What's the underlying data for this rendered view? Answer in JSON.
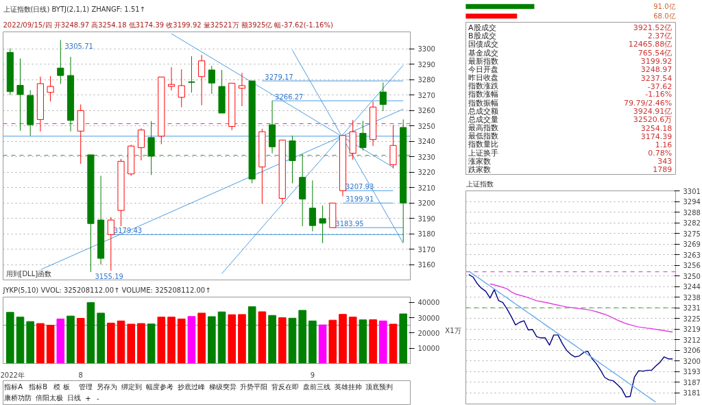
{
  "chart_data": [
    {
      "type": "candlestick",
      "title": "上证指数(日线)",
      "subtitle": "2022/09/15/四 开3248.97 高3254.18 低3174.39 收3199.92 量32521万 额3925亿 幅-37.62(-1.16%)",
      "annotations": [
        "BYTJ(2,1,1)  ZHANGF: 1.51↑",
        "用到[DLL]函数",
        "3305.71",
        "3155.19",
        {
          "text": "3179.43",
          "y": 3179.43
        },
        {
          "text": "3279.17",
          "y": 3279.17
        },
        {
          "text": "3266.27",
          "y": 3266.27
        },
        {
          "text": "3207.93",
          "y": 3207.93
        },
        {
          "text": "3199.91",
          "y": 3199.91
        },
        {
          "text": "3183.95",
          "y": 3183.95
        }
      ],
      "categories": [
        null,
        null,
        null,
        null,
        null,
        null,
        null,
        null,
        null,
        null,
        null,
        null,
        null,
        null,
        null,
        null,
        null,
        null,
        null,
        null,
        null,
        null,
        null,
        null,
        null,
        null,
        null,
        null,
        null,
        null,
        null,
        null,
        null,
        null,
        null,
        null,
        null,
        null,
        null,
        null
      ],
      "ohlc": [
        [
          3297.7,
          3300.3,
          3270.0,
          3272.2
        ],
        [
          3276.3,
          3293.7,
          3246.8,
          3270.3
        ],
        [
          3269.8,
          3273.1,
          3243.6,
          3250.7
        ],
        [
          3254.1,
          3282.0,
          3246.3,
          3277.4
        ],
        [
          3271.7,
          3282.3,
          3265.8,
          3275.6
        ],
        [
          3287.5,
          3305.71,
          3277.2,
          3282.7
        ],
        [
          3282.7,
          3294.8,
          3246.4,
          3253.5
        ],
        [
          3246.6,
          3263.9,
          3225.4,
          3259.9
        ],
        [
          3231.2,
          3231.2,
          3155.19,
          3186.6
        ],
        [
          3188.9,
          3217.6,
          3159.9,
          3164.0
        ],
        [
          3179.43,
          3190.8,
          3156.0,
          3188.9
        ],
        [
          3195.1,
          3228.6,
          3184.9,
          3227.0
        ],
        [
          3218.8,
          3237.7,
          3217.6,
          3236.9
        ],
        [
          3235.9,
          3248.4,
          3227.6,
          3247.3
        ],
        [
          3242.4,
          3253.1,
          3218.1,
          3230.3
        ],
        [
          3243.3,
          3281.7,
          3238.1,
          3281.7
        ],
        [
          3275.6,
          3288.1,
          3272.9,
          3276.9
        ],
        [
          3268.5,
          3286.7,
          3262.1,
          3276.1
        ],
        [
          3278.6,
          3295.2,
          3271.6,
          3278.2
        ],
        [
          3282.0,
          3296.0,
          3263.4,
          3292.2
        ],
        [
          3286.3,
          3288.9,
          3270.7,
          3277.8
        ],
        [
          3275.6,
          3286.3,
          3258.3,
          3258.3
        ],
        [
          3249.6,
          3277.7,
          3247.2,
          3277.7
        ],
        [
          3274.4,
          3284.4,
          3262.8,
          3276.1
        ],
        [
          3279.17,
          3279.17,
          3212.7,
          3215.5
        ],
        [
          3223.3,
          3248.1,
          3199.4,
          3246.2
        ],
        [
          3250.7,
          3266.27,
          3232.2,
          3236.4
        ],
        [
          3202.9,
          3240.8,
          3199.4,
          3240.8
        ],
        [
          3240.3,
          3243.7,
          3212.7,
          3227.4
        ],
        [
          3216.6,
          3231.6,
          3184.9,
          3202.5
        ],
        [
          3196.6,
          3214.6,
          3181.6,
          3185.3
        ],
        [
          3189.8,
          3198.3,
          3173.9,
          3186.8
        ],
        [
          3183.95,
          3199.91,
          3183.95,
          3199.91
        ],
        [
          3207.93,
          3244.2,
          3204.2,
          3243.7
        ],
        [
          3232.2,
          3253.8,
          3228.0,
          3246.2
        ],
        [
          3245.2,
          3253.3,
          3233.9,
          3235.9
        ],
        [
          3241.1,
          3265.7,
          3236.9,
          3262.2
        ],
        [
          3272.0,
          3278.1,
          3259.6,
          3263.9
        ],
        [
          3224.8,
          3250.5,
          3222.4,
          3237.3
        ],
        [
          3248.97,
          3254.18,
          3174.39,
          3199.92
        ]
      ],
      "colors": [
        "#008000",
        "#008000",
        "#008000",
        "#ff0000",
        "#ff0000",
        "#008000",
        "#008000",
        "#ff0000",
        "#008000",
        "#008000",
        "#ff0000",
        "#ff0000",
        "#ff0000",
        "#ff0000",
        "#008000",
        "#ff0000",
        "#ff0000",
        "#ff0000",
        "#008000",
        "#ff0000",
        "#008000",
        "#008000",
        "#ff0000",
        "#ff0000",
        "#008000",
        "#ff0000",
        "#008000",
        "#ff0000",
        "#008000",
        "#008000",
        "#008000",
        "#008000",
        "#ff0000",
        "#ff0000",
        "#ff0000",
        "#008000",
        "#ff0000",
        "#008000",
        "#ff0000",
        "#008000"
      ],
      "series": [
        {
          "type": "line",
          "color": "#4a9be0",
          "values": [
            null,
            null,
            null,
            3156.6,
            null,
            null,
            null,
            null,
            null,
            null,
            null,
            null,
            null,
            null,
            null,
            null,
            null,
            null,
            null,
            null,
            null,
            null,
            null,
            null,
            null,
            null,
            null,
            null,
            null,
            null,
            null,
            null,
            null,
            null,
            null,
            null,
            null,
            null,
            null,
            3260.9
          ]
        },
        {
          "type": "line",
          "color": "#4a9be0",
          "values": [
            null,
            null,
            null,
            null,
            null,
            null,
            null,
            null,
            null,
            null,
            null,
            null,
            null,
            null,
            null,
            null,
            null,
            null,
            null,
            null,
            null,
            3154.1,
            null,
            null,
            null,
            null,
            null,
            null,
            null,
            null,
            null,
            null,
            null,
            null,
            null,
            null,
            null,
            null,
            null,
            3289.4
          ]
        },
        {
          "type": "line",
          "color": "#4a9be0",
          "values": [
            null,
            null,
            null,
            null,
            null,
            null,
            null,
            null,
            null,
            null,
            null,
            null,
            null,
            null,
            null,
            null,
            3309.8,
            null,
            null,
            null,
            null,
            null,
            null,
            null,
            null,
            null,
            null,
            null,
            null,
            null,
            null,
            null,
            null,
            null,
            null,
            null,
            null,
            null,
            3223.1,
            null
          ]
        },
        {
          "type": "line",
          "color": "#4a9be0",
          "values": [
            null,
            null,
            null,
            null,
            null,
            null,
            null,
            null,
            null,
            null,
            null,
            null,
            null,
            null,
            null,
            null,
            null,
            null,
            null,
            null,
            null,
            null,
            null,
            null,
            null,
            null,
            null,
            null,
            3299.1,
            null,
            null,
            null,
            null,
            null,
            null,
            null,
            null,
            null,
            null,
            3173.8
          ]
        },
        {
          "type": "line",
          "color": "#4a9be0",
          "values": [
            null,
            null,
            null,
            null,
            null,
            null,
            null,
            null,
            null,
            null,
            3179.43,
            null,
            null,
            null,
            null,
            null,
            null,
            null,
            null,
            null,
            null,
            null,
            null,
            null,
            null,
            null,
            null,
            null,
            null,
            null,
            null,
            null,
            null,
            null,
            null,
            null,
            null,
            null,
            null,
            3179.43
          ]
        },
        {
          "type": "line",
          "color": "#4a9be0",
          "values": [
            null,
            null,
            null,
            null,
            null,
            null,
            null,
            null,
            null,
            null,
            null,
            null,
            null,
            null,
            null,
            null,
            null,
            null,
            null,
            null,
            null,
            null,
            null,
            null,
            null,
            3279.17,
            null,
            null,
            null,
            null,
            null,
            null,
            null,
            null,
            null,
            null,
            null,
            null,
            null,
            3279.17
          ]
        },
        {
          "type": "line",
          "color": "#4a9be0",
          "values": [
            null,
            null,
            null,
            null,
            null,
            null,
            null,
            null,
            null,
            null,
            null,
            null,
            null,
            null,
            null,
            null,
            null,
            null,
            null,
            null,
            null,
            null,
            null,
            null,
            null,
            null,
            3266.27,
            null,
            null,
            null,
            null,
            null,
            null,
            null,
            null,
            null,
            null,
            null,
            null,
            3266.27
          ]
        },
        {
          "type": "line",
          "color": "#4a9be0",
          "values": [
            null,
            null,
            null,
            null,
            null,
            null,
            null,
            null,
            null,
            null,
            null,
            null,
            null,
            null,
            null,
            null,
            null,
            null,
            null,
            null,
            null,
            null,
            null,
            null,
            null,
            null,
            null,
            null,
            null,
            null,
            null,
            null,
            null,
            3207.93,
            null,
            null,
            null,
            null,
            3207.93,
            null
          ]
        },
        {
          "type": "line",
          "color": "#4a9be0",
          "values": [
            null,
            null,
            null,
            null,
            null,
            null,
            null,
            null,
            null,
            null,
            null,
            null,
            null,
            null,
            null,
            null,
            null,
            null,
            null,
            null,
            null,
            null,
            null,
            null,
            null,
            null,
            null,
            null,
            null,
            null,
            null,
            null,
            null,
            3199.91,
            null,
            null,
            null,
            null,
            3199.91,
            null
          ]
        },
        {
          "type": "line",
          "color": "#4a9be0",
          "values": [
            null,
            null,
            null,
            null,
            null,
            null,
            null,
            null,
            null,
            null,
            null,
            null,
            null,
            null,
            null,
            null,
            null,
            null,
            null,
            null,
            null,
            null,
            null,
            null,
            null,
            null,
            null,
            null,
            null,
            null,
            null,
            null,
            3183.95,
            null,
            null,
            null,
            null,
            null,
            null,
            3183.95
          ]
        }
      ],
      "ref_lines": [
        {
          "axis": "y",
          "value": 3243.3,
          "color": "#4a9be0",
          "line_style": "solid"
        },
        {
          "axis": "y",
          "value": 3251.4,
          "color": "#cc33cc",
          "line_style": "dashed"
        },
        {
          "axis": "y",
          "value": 3230.9,
          "color": "#339933",
          "line_style": "dashed"
        }
      ],
      "ylim": [
        3150,
        3311
      ],
      "yticks": [
        3160,
        3170,
        3180,
        3190,
        3200,
        3210,
        3220,
        3230,
        3240,
        3250,
        3260,
        3270,
        3280,
        3290,
        3300
      ],
      "tick_labels": "y",
      "grid": "y"
    },
    {
      "type": "bar",
      "title": "JYKP(5,10)  VVOL: 325208112.00↑  VOLUME: 325208112.00↑",
      "ylabel": "X1万",
      "categories": [
        "2022年",
        null,
        null,
        null,
        null,
        null,
        null,
        "8",
        null,
        null,
        null,
        null,
        null,
        null,
        null,
        null,
        null,
        null,
        null,
        null,
        null,
        null,
        null,
        null,
        null,
        null,
        null,
        null,
        null,
        null,
        "9",
        null,
        null,
        null,
        null,
        null,
        null,
        null,
        null,
        null
      ],
      "values": [
        33500,
        30400,
        27500,
        26200,
        25100,
        29200,
        31100,
        29600,
        39900,
        33000,
        26500,
        27900,
        25800,
        26200,
        25900,
        30400,
        30400,
        29200,
        30800,
        33000,
        30700,
        33800,
        32000,
        32100,
        37200,
        33900,
        31500,
        30000,
        29700,
        34800,
        27900,
        25300,
        28400,
        32200,
        30400,
        28600,
        28700,
        27900,
        25800,
        32500
      ],
      "colors": [
        "#008000",
        "#008000",
        "#008000",
        "#ff0000",
        "#ff0000",
        "#ff00ff",
        "#008000",
        "#ff0000",
        "#008000",
        "#008000",
        "#ff0000",
        "#ff0000",
        "#ff0000",
        "#ff0000",
        "#008000",
        "#ff0000",
        "#ff0000",
        "#ff0000",
        "#ff00ff",
        "#ff0000",
        "#008000",
        "#008000",
        "#ff0000",
        "#ff0000",
        "#008000",
        "#ff0000",
        "#008000",
        "#ff0000",
        "#008000",
        "#008000",
        "#008000",
        "#ff00ff",
        "#ff0000",
        "#ff0000",
        "#ff0000",
        "#008000",
        "#ff0000",
        "#ff00ff",
        "#ff0000",
        "#008000"
      ],
      "ref_lines": [
        {
          "axis": "y",
          "value": 25100,
          "color": "#4a9be0",
          "line_style": "solid"
        }
      ],
      "ylim": [
        0,
        43500
      ],
      "yticks": [
        10000,
        20000,
        30000,
        40000
      ]
    },
    {
      "type": "other",
      "annotations": [
        "指标A",
        "指标B",
        "模 板",
        "管理",
        "另存为",
        "绑定到",
        "幅度参考",
        "抄底过峰",
        "梯级突异",
        "升势平阳",
        "背反在即",
        "盘前三线",
        "英雄挂帅",
        "顶底预判",
        "康桥功防",
        "倍阳太极",
        "日线",
        "+",
        "-"
      ]
    },
    {
      "type": "bar",
      "orientation": "horizontal",
      "categories": [
        null,
        null
      ],
      "values": [
        91.0,
        68.0
      ],
      "colors": [
        "#008000",
        "#ff0000"
      ],
      "value_labels": [
        "91.0亿",
        "68.0亿"
      ],
      "xlim": [
        0,
        280
      ],
      "tick_labels": false
    },
    {
      "type": "other",
      "annotations": [
        "A股成交",
        "3921.52亿",
        "B股成交",
        "2.37亿",
        "国债成交",
        "12465.88亿",
        "基金成交",
        "765.54亿",
        "最新指数",
        "3199.92",
        "今日开盘",
        "3248.97",
        "昨日收盘",
        "3237.54",
        "指数涨跌",
        "-37.62",
        "指数涨幅",
        "-1.16%",
        "指数振幅",
        "79.79/2.46%",
        "总成交额",
        "3924.91亿",
        "总成交量",
        "32520.6万",
        "最高指数",
        "3254.18",
        "最低指数",
        "3174.39",
        "指数量比",
        "1.16",
        "上证换手",
        "0.78%",
        "涨家数",
        "343",
        "跌家数",
        "1789"
      ]
    },
    {
      "type": "line",
      "title": "上证指数",
      "categories": [
        null,
        null,
        null,
        null,
        null,
        null,
        null,
        null,
        null,
        null,
        null,
        null,
        null,
        null,
        null,
        null,
        null,
        null,
        null,
        null,
        null,
        null,
        null,
        null,
        null,
        null,
        null,
        null,
        null,
        null,
        null,
        null,
        null,
        null,
        null,
        null,
        null,
        null,
        null,
        null,
        null,
        null,
        null,
        null,
        null,
        null,
        null,
        null,
        null
      ],
      "series": [
        {
          "color": "#000080",
          "values": [
            3251.0,
            3249.5,
            3245.5,
            3242.8,
            3241.0,
            3237.0,
            3242.0,
            3235.5,
            3234.4,
            3230.5,
            3226.0,
            3221.0,
            3222.6,
            3223.5,
            3218.0,
            3218.3,
            3214.0,
            3213.3,
            3213.3,
            3209.0,
            3215.0,
            3215.0,
            3210.0,
            3206.0,
            3203.5,
            3202.0,
            3202.5,
            3204.5,
            3205.4,
            3201.0,
            3198.1,
            3194.2,
            3189.8,
            3188.3,
            3187.8,
            3185.5,
            3183.0,
            3178.2,
            3178.5,
            3189.9,
            3193.8,
            3193.5,
            3194.0,
            3194.0,
            3196.5,
            3198.7,
            3202.0,
            3200.8,
            3200.8
          ]
        },
        {
          "color": "#e040e0",
          "values": [
            null,
            null,
            null,
            null,
            null,
            3245.4,
            3244.8,
            3244.1,
            3243.3,
            3242.5,
            3240.7,
            3239.4,
            3238.7,
            3238.0,
            3237.2,
            3236.3,
            3235.4,
            3234.9,
            3234.4,
            3233.9,
            3233.3,
            3232.8,
            3232.2,
            3231.7,
            3231.4,
            3231.0,
            3230.7,
            3230.4,
            3230.1,
            3229.6,
            3228.9,
            3228.1,
            3227.3,
            3226.3,
            3225.1,
            3223.9,
            3222.8,
            3221.8,
            3221.1,
            3220.4,
            3219.8,
            3219.5,
            3219.1,
            3218.8,
            3218.4,
            3218.0,
            3217.6,
            3217.2,
            3216.8
          ]
        },
        {
          "color": "#66aaee",
          "values": [
            3253.0,
            3251.2,
            3249.5,
            3247.7,
            3245.9,
            3244.2,
            3242.4,
            3240.6,
            3238.8,
            3237.1,
            3235.3,
            3233.5,
            3231.8,
            3230.0,
            3228.2,
            3226.5,
            3224.7,
            3222.9,
            3221.1,
            3219.4,
            3217.6,
            3215.8,
            3214.1,
            3212.3,
            3210.5,
            3208.8,
            3207.0,
            3205.2,
            3203.4,
            3201.7,
            3199.9,
            3198.1,
            3196.4,
            3194.6,
            3192.8,
            3191.1,
            3189.3,
            3187.5,
            3185.7,
            3184.0,
            3182.2,
            3180.4,
            3178.7,
            3176.9,
            3175.1,
            null,
            null,
            null,
            null
          ]
        }
      ],
      "ref_lines": [
        {
          "axis": "y",
          "value": 3252.6,
          "color": "#cc33cc",
          "line_style": "dashed"
        },
        {
          "axis": "y",
          "value": 3231.2,
          "color": "#339933",
          "line_style": "dashed"
        }
      ],
      "ylim": [
        3174.0,
        3300.74
      ],
      "yticks": [
        {
          "value": 3300.74,
          "label": "3301"
        },
        {
          "value": 3294.42,
          "label": "3294"
        },
        {
          "value": 3288.1,
          "label": "3288"
        },
        {
          "value": 3281.78,
          "label": "3282"
        },
        {
          "value": 3275.46,
          "label": "3275"
        },
        {
          "value": 3269.14,
          "label": "3269"
        },
        {
          "value": 3262.82,
          "label": "3263"
        },
        {
          "value": 3256.5,
          "label": "3256"
        },
        {
          "value": 3250.18,
          "label": "3250"
        },
        {
          "value": 3243.86,
          "label": "3244"
        },
        {
          "value": 3237.54,
          "label": "3238"
        },
        {
          "value": 3231.22,
          "label": "3231"
        },
        {
          "value": 3224.9,
          "label": "3225"
        },
        {
          "value": 3218.58,
          "label": "3219"
        },
        {
          "value": 3212.26,
          "label": "3212"
        },
        {
          "value": 3205.94,
          "label": "3206"
        },
        {
          "value": 3199.62,
          "label": "3200"
        },
        {
          "value": 3193.3,
          "label": "3193"
        },
        {
          "value": 3186.98,
          "label": "3187"
        },
        {
          "value": 3180.66,
          "label": "3181"
        }
      ],
      "tick_labels": "y",
      "grid": "y"
    }
  ]
}
